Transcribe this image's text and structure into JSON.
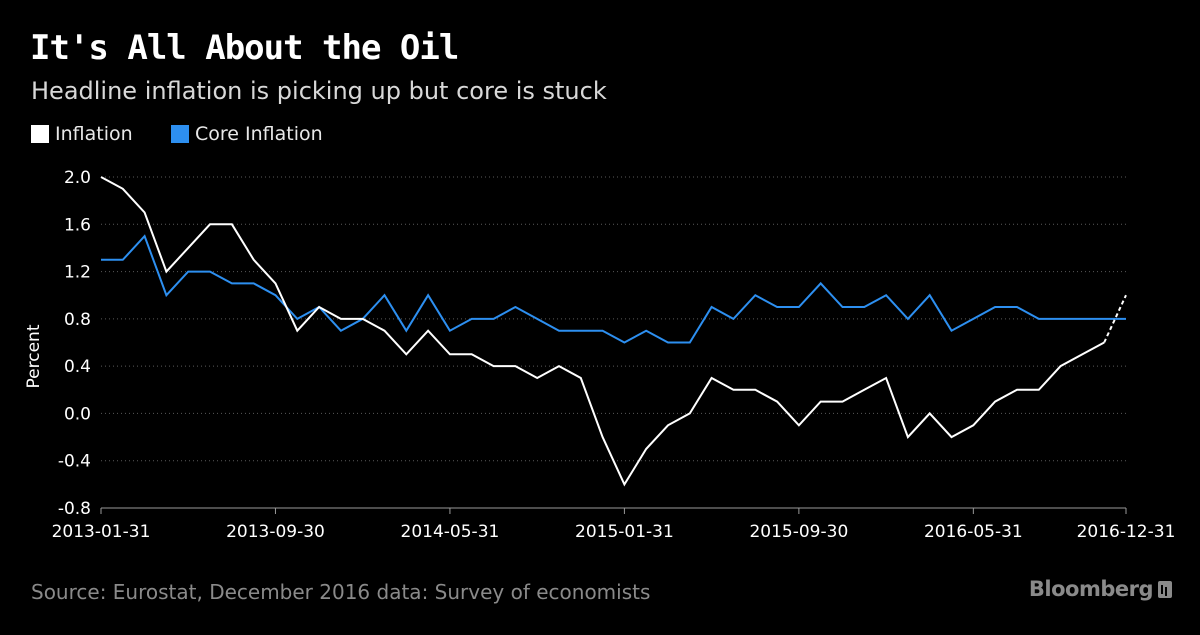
{
  "title": "It's All About the Oil",
  "subtitle": "Headline inflation is picking up but core is stuck",
  "source": "Source: Eurostat, December 2016 data: Survey of economists",
  "brand": "Bloomberg",
  "colors": {
    "background": "#000000",
    "inflation": "#ffffff",
    "core": "#2d8ff0",
    "grid": "#5a5a5a"
  },
  "chart_data": {
    "type": "line",
    "title": "It's All About the Oil",
    "ylabel": "Percent",
    "xlabel": "",
    "ylim": [
      -0.8,
      2.0
    ],
    "yticks": [
      "2.0",
      "1.6",
      "1.2",
      "0.8",
      "0.4",
      "0.0",
      "-0.4",
      "-0.8"
    ],
    "ytick_values": [
      2.0,
      1.6,
      1.2,
      0.8,
      0.4,
      0.0,
      -0.4,
      -0.8
    ],
    "xtick_labels": [
      "2013-01-31",
      "2013-09-30",
      "2014-05-31",
      "2015-01-31",
      "2015-09-30",
      "2016-05-31",
      "2016-12-31"
    ],
    "xtick_indices": [
      0,
      8,
      16,
      24,
      32,
      40,
      47
    ],
    "x_count": 48,
    "legend": [
      "Inflation",
      "Core Inflation"
    ],
    "series": [
      {
        "name": "Inflation",
        "values": [
          2.0,
          1.9,
          1.7,
          1.2,
          1.4,
          1.6,
          1.6,
          1.3,
          1.1,
          0.7,
          0.9,
          0.8,
          0.8,
          0.7,
          0.5,
          0.7,
          0.5,
          0.5,
          0.4,
          0.4,
          0.3,
          0.4,
          0.3,
          -0.2,
          -0.6,
          -0.3,
          -0.1,
          0.0,
          0.3,
          0.2,
          0.2,
          0.1,
          -0.1,
          0.1,
          0.1,
          0.2,
          0.3,
          -0.2,
          0.0,
          -0.2,
          -0.1,
          0.1,
          0.2,
          0.2,
          0.4,
          0.5,
          0.6,
          1.0
        ],
        "dashed_from_index": 46
      },
      {
        "name": "Core Inflation",
        "values": [
          1.3,
          1.3,
          1.5,
          1.0,
          1.2,
          1.2,
          1.1,
          1.1,
          1.0,
          0.8,
          0.9,
          0.7,
          0.8,
          1.0,
          0.7,
          1.0,
          0.7,
          0.8,
          0.8,
          0.9,
          0.8,
          0.7,
          0.7,
          0.7,
          0.6,
          0.7,
          0.6,
          0.6,
          0.9,
          0.8,
          1.0,
          0.9,
          0.9,
          1.1,
          0.9,
          0.9,
          1.0,
          0.8,
          1.0,
          0.7,
          0.8,
          0.9,
          0.9,
          0.8,
          0.8,
          0.8,
          0.8,
          0.8
        ]
      }
    ]
  }
}
